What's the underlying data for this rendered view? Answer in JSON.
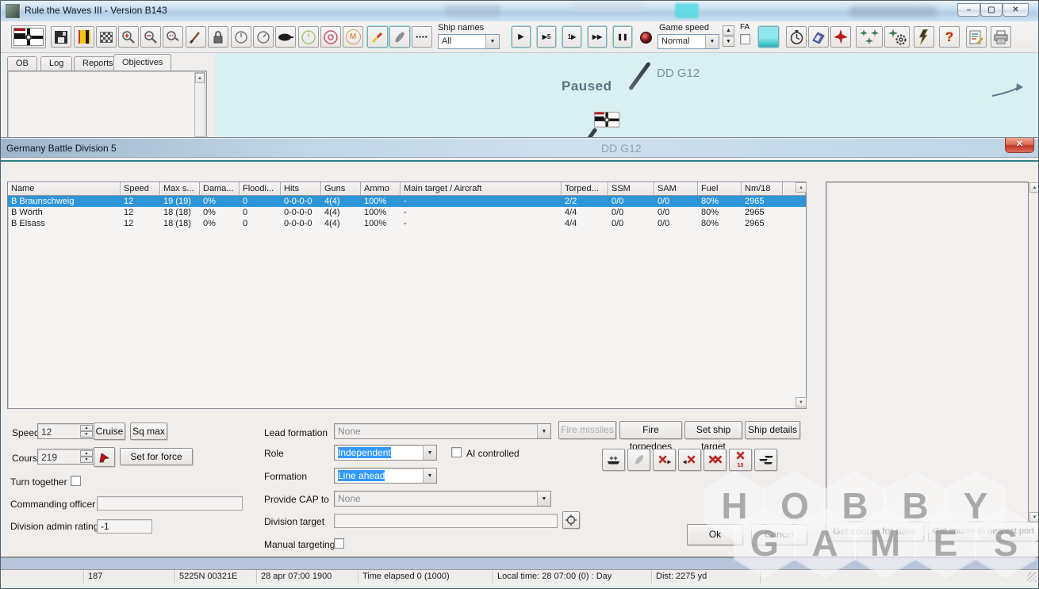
{
  "window": {
    "title": "Rule the Waves III - Version B143",
    "controls": {
      "minimize": "–",
      "maximize": "▢",
      "close": "✕"
    }
  },
  "toolbar": {
    "ship_names_label": "Ship names",
    "ship_names_value": "All",
    "game_speed_label": "Game speed",
    "game_speed_value": "Normal",
    "fa_label": "FA",
    "playback": [
      "▶",
      "▶5",
      "1▶",
      "▶▶",
      "❚❚"
    ],
    "orange_circle_letter": "M",
    "help_glyph": "?"
  },
  "tabs": [
    {
      "label": "OB",
      "active": false
    },
    {
      "label": "Log",
      "active": false
    },
    {
      "label": "Reports",
      "active": false
    },
    {
      "label": "Objectives",
      "active": true
    }
  ],
  "map": {
    "paused_text": "Paused",
    "ship_label": "DD G12"
  },
  "dialog": {
    "title": "Germany Battle Division 5",
    "table": {
      "columns": [
        "Name",
        "Speed",
        "Max s...",
        "Dama...",
        "Floodi...",
        "Hits",
        "Guns",
        "Ammo",
        "Main target / Aircraft",
        "Torped...",
        "SSM",
        "SAM",
        "Fuel",
        "Nm/18"
      ],
      "rows": [
        {
          "selected": true,
          "cells": [
            "B Braunschweig",
            "12",
            "19 (19)",
            "0%",
            "0",
            "0-0-0-0",
            "4(4)",
            "100%",
            "-",
            "2/2",
            "0/0",
            "0/0",
            "80%",
            "2965"
          ]
        },
        {
          "selected": false,
          "cells": [
            "B Wörth",
            "12",
            "18 (18)",
            "0%",
            "0",
            "0-0-0-0",
            "4(4)",
            "100%",
            "-",
            "4/4",
            "0/0",
            "0/0",
            "80%",
            "2965"
          ]
        },
        {
          "selected": false,
          "cells": [
            "B Elsass",
            "12",
            "18 (18)",
            "0%",
            "0",
            "0-0-0-0",
            "4(4)",
            "100%",
            "-",
            "4/4",
            "0/0",
            "0/0",
            "80%",
            "2965"
          ]
        }
      ]
    },
    "controls": {
      "speed_label": "Speed",
      "speed_value": "12",
      "cruise_label": "Cruise",
      "sq_max_label": "Sq max",
      "course_label": "Course",
      "course_value": "219",
      "set_for_force_label": "Set for force",
      "turn_together_label": "Turn together",
      "commanding_officer_label": "Commanding officer",
      "commanding_officer_value": "",
      "division_admin_label": "Division admin rating",
      "division_admin_value": "-1",
      "lead_formation_label": "Lead formation",
      "lead_formation_value": "None",
      "role_label": "Role",
      "role_value": "Independent",
      "ai_controlled_label": "AI controlled",
      "formation_label": "Formation",
      "formation_value": "Line ahead",
      "provide_cap_label": "Provide CAP to",
      "provide_cap_value": "None",
      "division_target_label": "Division target",
      "division_target_value": "",
      "manual_targeting_label": "Manual targeting"
    },
    "buttons": {
      "fire_missiles": "Fire missiles",
      "fire_torpedoes": "Fire torpedoes",
      "set_ship_target": "Set ship target",
      "ship_details": "Ship details",
      "ok": "Ok",
      "cancel": "Cancel",
      "get_course_for_base": "Get course for base",
      "get_course_to_nearest_port": "Get course to nearest port",
      "detach_10_number": "10"
    }
  },
  "statusbar": {
    "cells": [
      "",
      "187",
      "5225N 00321E",
      "28 apr 07:00 1900",
      "Time elapsed 0 (1000)",
      "Local time: 28 07:00 (0) : Day",
      "Dist: 2275 yd",
      ""
    ]
  },
  "watermark": {
    "row1": [
      "H",
      "O",
      "B",
      "B",
      "Y"
    ],
    "row2": [
      "G",
      "A",
      "M",
      "E",
      "S"
    ]
  },
  "colors": {
    "selection_blue": "#2d94d8",
    "map_cyan": "#d9eff1",
    "dialog_bg": "#f0edeb",
    "teal_divider": "#2f7e88",
    "close_red": "#c23a28",
    "highlight_blue": "#3399ff"
  }
}
